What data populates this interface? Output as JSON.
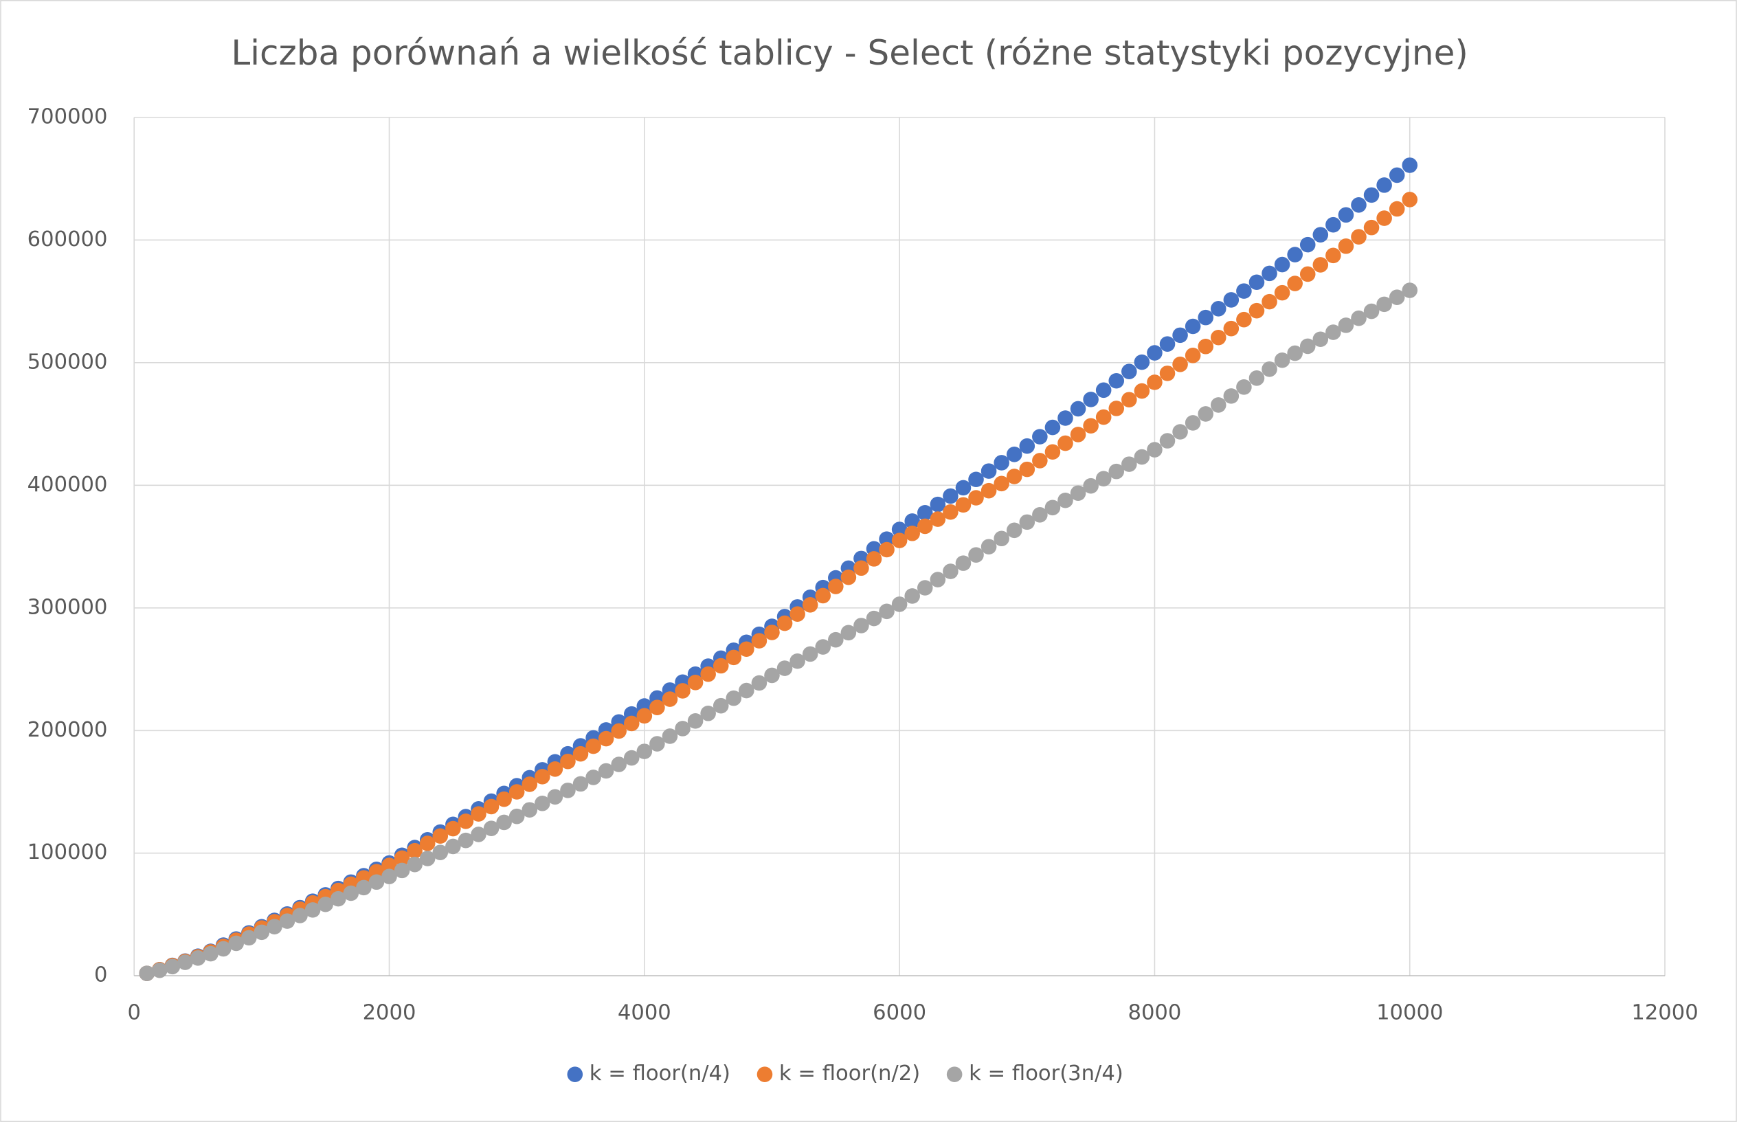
{
  "chart_data": {
    "type": "scatter",
    "title": "Liczba porównań a wielkość tablicy - Select (różne statystyki pozycyjne)",
    "xlim": [
      0,
      12000
    ],
    "xticks": [
      0,
      2000,
      4000,
      6000,
      8000,
      10000,
      12000
    ],
    "ylim": [
      0,
      700000
    ],
    "yticks": [
      0,
      100000,
      200000,
      300000,
      400000,
      500000,
      600000,
      700000
    ],
    "grid": true,
    "legend": "bottom",
    "x": [
      100,
      200,
      300,
      400,
      500,
      600,
      700,
      800,
      900,
      1000,
      1100,
      1200,
      1300,
      1400,
      1500,
      1600,
      1700,
      1800,
      1900,
      2000,
      2100,
      2200,
      2300,
      2400,
      2500,
      2600,
      2700,
      2800,
      2900,
      3000,
      3100,
      3200,
      3300,
      3400,
      3500,
      3600,
      3700,
      3800,
      3900,
      4000,
      4100,
      4200,
      4300,
      4400,
      4500,
      4600,
      4700,
      4800,
      4900,
      5000,
      5100,
      5200,
      5300,
      5400,
      5500,
      5600,
      5700,
      5800,
      5900,
      6000,
      6100,
      6200,
      6300,
      6400,
      6500,
      6600,
      6700,
      6800,
      6900,
      7000,
      7100,
      7200,
      7300,
      7400,
      7500,
      7600,
      7700,
      7800,
      7900,
      8000,
      8100,
      8200,
      8300,
      8400,
      8500,
      8600,
      8700,
      8800,
      8900,
      9000,
      9100,
      9200,
      9300,
      9400,
      9500,
      9600,
      9700,
      9800,
      9900,
      10000
    ],
    "series": [
      {
        "name": "k = floor(n/4)",
        "color": "#4472c4",
        "values": [
          2000,
          5000,
          8500,
          12000,
          16000,
          20000,
          25000,
          30000,
          35000,
          40000,
          45200,
          50400,
          55600,
          60800,
          66000,
          71200,
          76400,
          81600,
          86800,
          92000,
          98300,
          104600,
          110900,
          117200,
          123500,
          129800,
          136100,
          142400,
          148700,
          155000,
          161500,
          168000,
          174500,
          181000,
          187500,
          194000,
          200500,
          207000,
          213500,
          220000,
          226500,
          233000,
          239500,
          246000,
          252500,
          259000,
          265500,
          272000,
          278500,
          285000,
          292900,
          300800,
          308700,
          316600,
          324500,
          332400,
          340300,
          348200,
          356100,
          364000,
          370800,
          377600,
          384400,
          391200,
          398000,
          404800,
          411600,
          418400,
          425200,
          432000,
          439600,
          447200,
          454800,
          462400,
          470000,
          477600,
          485200,
          492800,
          500400,
          508000,
          515200,
          522400,
          529600,
          536800,
          544000,
          551200,
          558400,
          565600,
          572800,
          580000,
          588100,
          596200,
          604300,
          612400,
          620500,
          628600,
          636700,
          644800,
          652900,
          661000
        ]
      },
      {
        "name": "k = floor(n/2)",
        "color": "#ed7d31",
        "values": [
          2000,
          5000,
          8300,
          11700,
          15500,
          19500,
          24000,
          29000,
          34000,
          39000,
          44100,
          49200,
          54300,
          59400,
          64500,
          69600,
          74700,
          79800,
          84900,
          90000,
          96000,
          102000,
          108000,
          114000,
          120000,
          126000,
          132000,
          138000,
          144000,
          150000,
          156200,
          162400,
          168600,
          174800,
          181000,
          187200,
          193400,
          199600,
          205800,
          212000,
          218800,
          225600,
          232400,
          239200,
          246000,
          252800,
          259600,
          266400,
          273200,
          280000,
          287500,
          295000,
          302500,
          310000,
          317500,
          325000,
          332500,
          340000,
          347500,
          355000,
          360800,
          366600,
          372400,
          378200,
          384000,
          389800,
          395600,
          401400,
          407200,
          413000,
          420100,
          427200,
          434300,
          441400,
          448500,
          455600,
          462700,
          469800,
          476900,
          484000,
          491300,
          498600,
          505900,
          513200,
          520500,
          527800,
          535100,
          542400,
          549700,
          557000,
          564600,
          572200,
          579800,
          587400,
          595000,
          602600,
          610200,
          617800,
          625400,
          633000
        ]
      },
      {
        "name": "k = floor(3n/4)",
        "color": "#a5a5a5",
        "values": [
          2000,
          4500,
          7500,
          11000,
          14500,
          18000,
          22000,
          26500,
          31000,
          35500,
          40050,
          44600,
          49150,
          53700,
          58250,
          62800,
          67350,
          71900,
          76450,
          81000,
          85900,
          90800,
          95700,
          100600,
          105500,
          110400,
          115300,
          120200,
          125100,
          130000,
          135300,
          140600,
          145900,
          151200,
          156500,
          161800,
          167100,
          172400,
          177700,
          183000,
          189200,
          195400,
          201600,
          207800,
          214000,
          220200,
          226400,
          232600,
          238800,
          245000,
          250800,
          256600,
          262400,
          268200,
          274000,
          279800,
          285600,
          291400,
          297200,
          303000,
          309700,
          316400,
          323100,
          329800,
          336500,
          343200,
          349900,
          356600,
          363300,
          370000,
          375900,
          381800,
          387700,
          393600,
          399500,
          405400,
          411300,
          417200,
          423100,
          429000,
          436300,
          443600,
          450900,
          458200,
          465500,
          472800,
          480100,
          487400,
          494700,
          502000,
          507700,
          513400,
          519100,
          524800,
          530500,
          536200,
          541900,
          547600,
          553300,
          559000
        ]
      }
    ]
  }
}
